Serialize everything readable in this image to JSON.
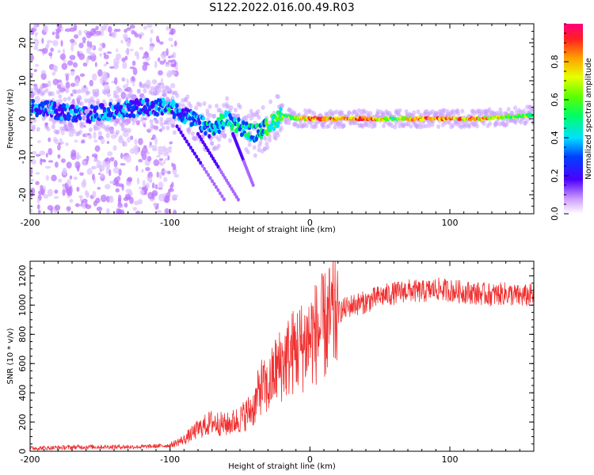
{
  "title": "S122.2022.016.00.49.R03",
  "chart_data": [
    {
      "type": "heatmap",
      "xlabel": "Height of straight line (km)",
      "ylabel": "Frequency (Hz)",
      "xlim": [
        -200,
        160
      ],
      "ylim": [
        -25,
        25
      ],
      "x_ticks": [
        -200,
        -100,
        0,
        100
      ],
      "y_ticks": [
        -20,
        -10,
        0,
        10,
        20
      ],
      "colorbar": {
        "label": "Normalized spectral amplitude",
        "range": [
          0,
          1
        ],
        "ticks": [
          0.0,
          0.2,
          0.4,
          0.6,
          0.8
        ],
        "tick_labels": [
          "0.0",
          "0.2",
          "0.4",
          "0.6",
          "0.8"
        ]
      },
      "ridge": {
        "x": [
          -200,
          -180,
          -160,
          -140,
          -120,
          -100,
          -90,
          -80,
          -70,
          -60,
          -50,
          -40,
          -30,
          -20,
          -10,
          0,
          20,
          40,
          60,
          80,
          100,
          120,
          140,
          160
        ],
        "frequency": [
          3,
          2,
          1,
          2,
          3,
          3,
          1,
          -1,
          -3,
          0,
          -2,
          -4,
          -2,
          1,
          0,
          0,
          0,
          0,
          0,
          0,
          0,
          0,
          0.5,
          1
        ],
        "amplitude": [
          0.35,
          0.3,
          0.3,
          0.3,
          0.35,
          0.4,
          0.35,
          0.35,
          0.4,
          0.45,
          0.45,
          0.45,
          0.5,
          0.6,
          0.75,
          0.85,
          0.85,
          0.95,
          0.6,
          0.9,
          0.85,
          0.85,
          0.7,
          0.6
        ]
      }
    },
    {
      "type": "line",
      "xlabel": "Height of straight line (km)",
      "ylabel": "SNR (10 * v/v)",
      "xlim": [
        -200,
        160
      ],
      "ylim": [
        0,
        1300
      ],
      "x_ticks": [
        -200,
        -100,
        0,
        100
      ],
      "y_ticks": [
        0,
        200,
        400,
        600,
        800,
        1000,
        1200
      ],
      "color": "#f03030",
      "series": [
        {
          "x": [
            -200,
            -180,
            -160,
            -140,
            -120,
            -100,
            -90,
            -80,
            -70,
            -60,
            -50,
            -40,
            -35,
            -30,
            -25,
            -20,
            -15,
            -10,
            -5,
            0,
            10,
            20,
            30,
            40,
            50,
            60,
            70,
            80,
            90,
            100,
            110,
            120,
            130,
            140,
            150,
            160
          ],
          "values": [
            20,
            25,
            30,
            30,
            30,
            40,
            80,
            150,
            200,
            180,
            220,
            300,
            450,
            420,
            550,
            600,
            650,
            700,
            720,
            780,
            850,
            950,
            1000,
            1020,
            1060,
            1080,
            1100,
            1090,
            1110,
            1100,
            1090,
            1080,
            1070,
            1080,
            1060,
            1070
          ]
        }
      ]
    }
  ]
}
